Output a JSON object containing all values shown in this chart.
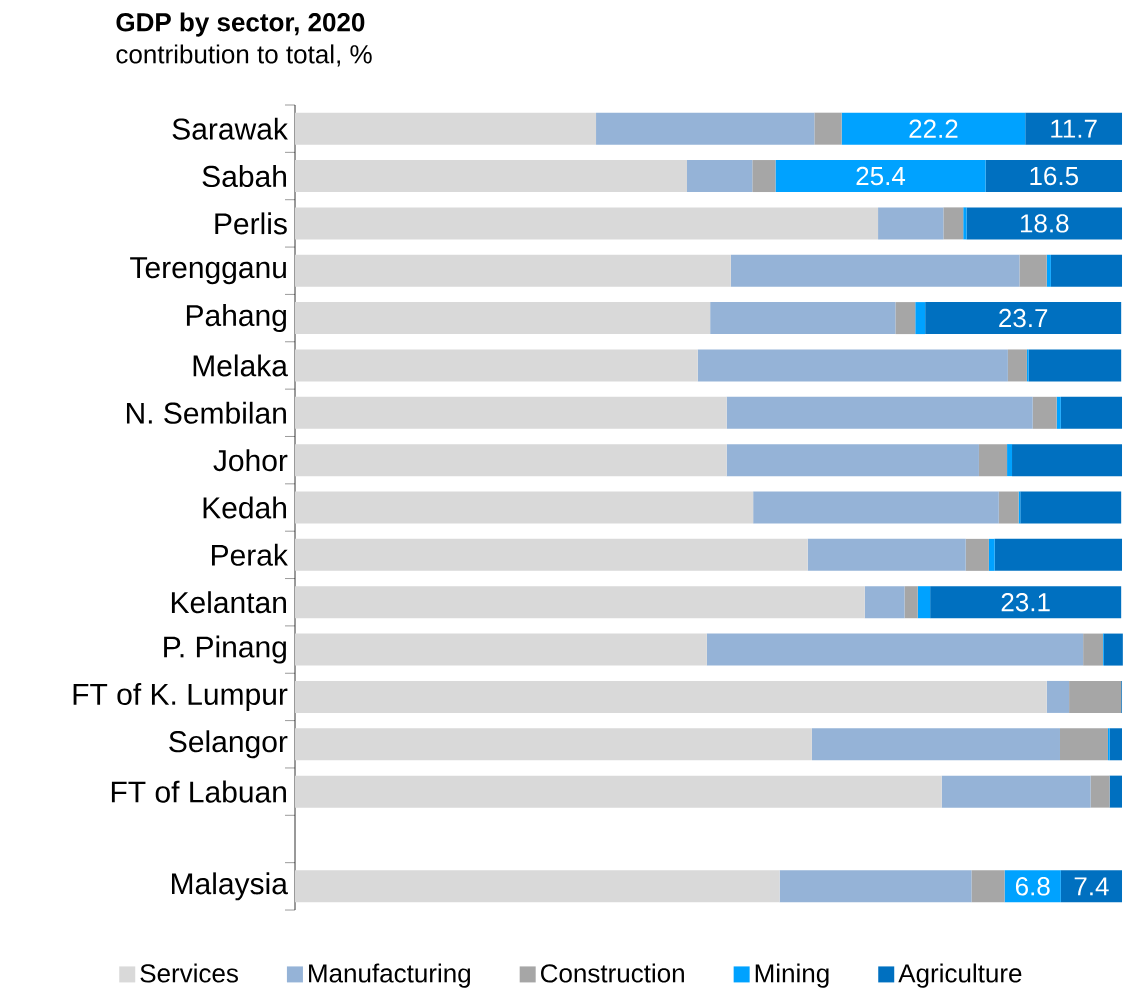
{
  "chart_data": {
    "type": "bar",
    "orientation": "horizontal",
    "stacked": true,
    "title": "GDP by sector, 2020",
    "subtitle": "contribution to total, %",
    "categories": [
      "Sarawak",
      "Sabah",
      "Perlis",
      "Terengganu",
      "Pahang",
      "Melaka",
      "N. Sembilan",
      "Johor",
      "Kedah",
      "Perak",
      "Kelantan",
      "P. Pinang",
      "FT of K. Lumpur",
      "Selangor",
      "FT of Labuan",
      null,
      "Malaysia"
    ],
    "xlim": [
      0,
      100
    ],
    "legend": "bottom",
    "series": [
      {
        "name": "Services",
        "color": "#d9d9d9",
        "values": [
          36.4,
          47.4,
          70.5,
          52.7,
          50.2,
          48.7,
          52.2,
          52.2,
          55.4,
          62.0,
          68.9,
          49.8,
          90.9,
          62.5,
          78.2,
          null,
          58.6
        ]
      },
      {
        "name": "Manufacturing",
        "color": "#95b3d7",
        "values": [
          26.4,
          7.9,
          7.9,
          34.9,
          22.4,
          37.5,
          37.0,
          30.5,
          29.7,
          19.1,
          4.8,
          45.5,
          2.7,
          30.0,
          18.0,
          null,
          23.2
        ]
      },
      {
        "name": "Construction",
        "color": "#a6a6a6",
        "values": [
          3.3,
          2.8,
          2.4,
          3.3,
          2.4,
          2.3,
          2.9,
          3.4,
          2.4,
          2.8,
          1.6,
          2.4,
          6.3,
          5.8,
          2.3,
          null,
          4.0
        ]
      },
      {
        "name": "Mining",
        "color": "#00a2ff",
        "values": [
          22.2,
          25.4,
          0.4,
          0.5,
          1.2,
          0.2,
          0.5,
          0.6,
          0.2,
          0.7,
          1.5,
          0.1,
          0.0,
          0.2,
          0.0,
          null,
          6.8
        ],
        "value_labels": [
          "22.2",
          "25.4",
          null,
          null,
          null,
          null,
          null,
          null,
          null,
          null,
          null,
          null,
          null,
          null,
          null,
          null,
          "6.8"
        ]
      },
      {
        "name": "Agriculture",
        "color": "#0070c0",
        "values": [
          11.7,
          16.5,
          18.8,
          8.6,
          23.7,
          11.2,
          7.4,
          13.3,
          12.2,
          15.4,
          23.1,
          2.3,
          0.1,
          1.5,
          1.5,
          null,
          7.4
        ],
        "value_labels": [
          "11.7",
          "16.5",
          "18.8",
          null,
          "23.7",
          null,
          null,
          null,
          null,
          null,
          "23.1",
          null,
          null,
          null,
          null,
          null,
          "7.4"
        ]
      }
    ]
  }
}
